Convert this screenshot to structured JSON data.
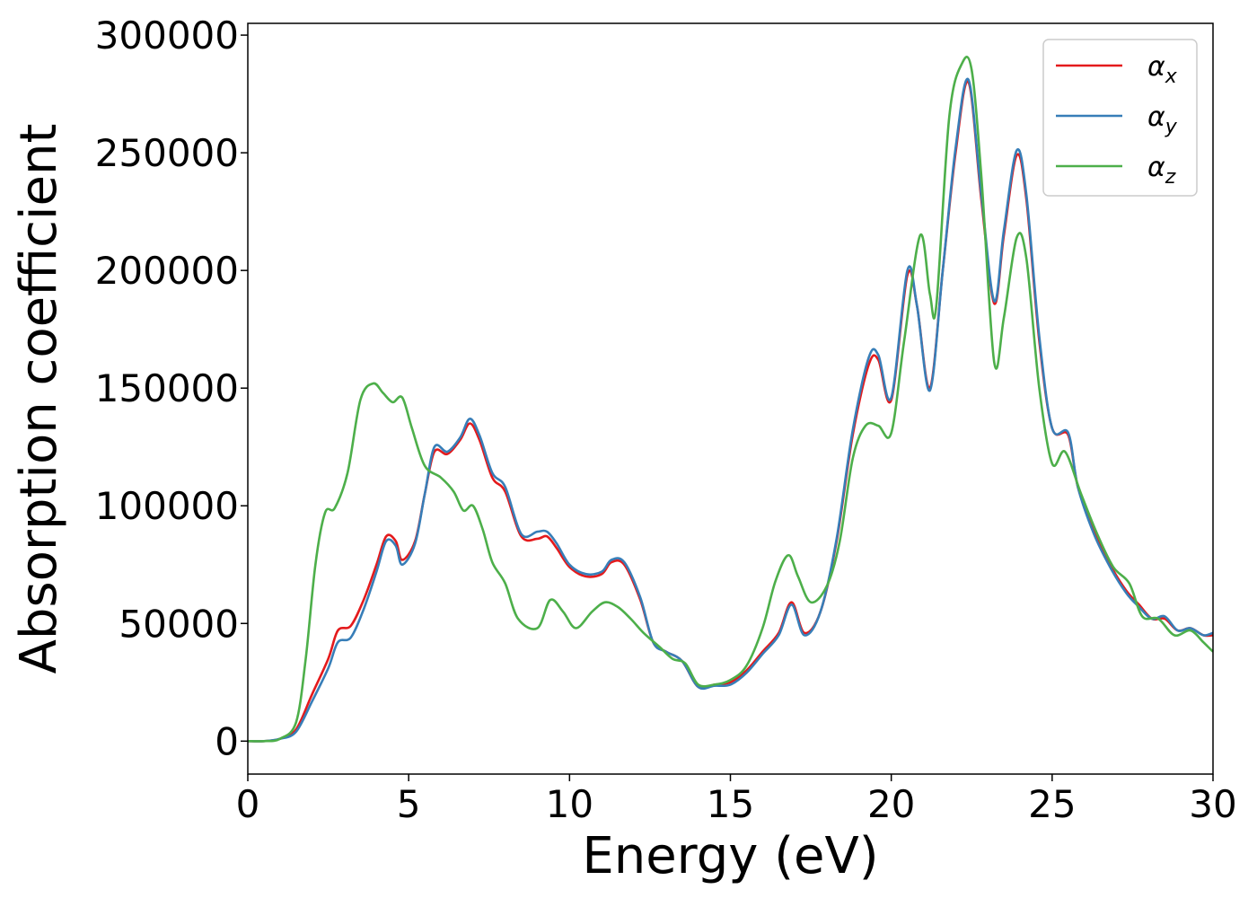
{
  "chart_data": {
    "type": "line",
    "xlabel": "Energy (eV)",
    "ylabel": "Absorption coefficient",
    "xlim": [
      0,
      30
    ],
    "ylim": [
      -14000,
      305000
    ],
    "xticks": [
      0,
      5,
      10,
      15,
      20,
      25,
      30
    ],
    "yticks": [
      0,
      50000,
      100000,
      150000,
      200000,
      250000,
      300000
    ],
    "grid": false,
    "legend_position": "top-right",
    "series": [
      {
        "name": "α_x",
        "legend_base": "α",
        "legend_sub": "x",
        "color": "#e41a1c",
        "points": [
          [
            0,
            0
          ],
          [
            0.5,
            0
          ],
          [
            1,
            1000
          ],
          [
            1.5,
            5000
          ],
          [
            2,
            20000
          ],
          [
            2.5,
            35000
          ],
          [
            2.8,
            47000
          ],
          [
            3.2,
            49000
          ],
          [
            3.6,
            60000
          ],
          [
            4,
            75000
          ],
          [
            4.3,
            87000
          ],
          [
            4.6,
            85000
          ],
          [
            4.8,
            77000
          ],
          [
            5.2,
            85000
          ],
          [
            5.5,
            105000
          ],
          [
            5.8,
            123000
          ],
          [
            6.2,
            122000
          ],
          [
            6.6,
            128000
          ],
          [
            6.9,
            135000
          ],
          [
            7.2,
            128000
          ],
          [
            7.6,
            112000
          ],
          [
            8,
            106000
          ],
          [
            8.5,
            87000
          ],
          [
            9,
            86000
          ],
          [
            9.3,
            87000
          ],
          [
            9.6,
            82000
          ],
          [
            10,
            74000
          ],
          [
            10.5,
            70000
          ],
          [
            11,
            71000
          ],
          [
            11.3,
            76000
          ],
          [
            11.7,
            75000
          ],
          [
            12.2,
            60000
          ],
          [
            12.6,
            42000
          ],
          [
            13,
            38000
          ],
          [
            13.5,
            34000
          ],
          [
            14,
            23000
          ],
          [
            14.5,
            24000
          ],
          [
            15,
            25000
          ],
          [
            15.5,
            30000
          ],
          [
            16,
            38000
          ],
          [
            16.5,
            46000
          ],
          [
            16.9,
            59000
          ],
          [
            17.3,
            46000
          ],
          [
            17.8,
            55000
          ],
          [
            18.3,
            85000
          ],
          [
            18.8,
            130000
          ],
          [
            19.3,
            160000
          ],
          [
            19.6,
            162000
          ],
          [
            20,
            145000
          ],
          [
            20.5,
            198000
          ],
          [
            20.8,
            185000
          ],
          [
            21.2,
            150000
          ],
          [
            21.6,
            200000
          ],
          [
            22,
            250000
          ],
          [
            22.4,
            280000
          ],
          [
            22.8,
            230000
          ],
          [
            23.2,
            186000
          ],
          [
            23.5,
            215000
          ],
          [
            23.9,
            249000
          ],
          [
            24.2,
            230000
          ],
          [
            24.6,
            170000
          ],
          [
            25,
            133000
          ],
          [
            25.5,
            130000
          ],
          [
            25.8,
            108000
          ],
          [
            26.3,
            89000
          ],
          [
            26.8,
            75000
          ],
          [
            27.3,
            64000
          ],
          [
            27.7,
            58000
          ],
          [
            28.1,
            52000
          ],
          [
            28.5,
            52000
          ],
          [
            28.9,
            47000
          ],
          [
            29.3,
            48000
          ],
          [
            29.7,
            45000
          ],
          [
            30,
            45000
          ]
        ]
      },
      {
        "name": "α_y",
        "legend_base": "α",
        "legend_sub": "y",
        "color": "#377eb8",
        "points": [
          [
            0,
            0
          ],
          [
            0.5,
            0
          ],
          [
            1,
            1000
          ],
          [
            1.5,
            4000
          ],
          [
            2,
            17000
          ],
          [
            2.5,
            31000
          ],
          [
            2.8,
            42000
          ],
          [
            3.2,
            44000
          ],
          [
            3.6,
            56000
          ],
          [
            4,
            72000
          ],
          [
            4.3,
            85000
          ],
          [
            4.6,
            83000
          ],
          [
            4.8,
            75000
          ],
          [
            5.2,
            84000
          ],
          [
            5.5,
            105000
          ],
          [
            5.8,
            125000
          ],
          [
            6.2,
            123000
          ],
          [
            6.6,
            129000
          ],
          [
            6.9,
            137000
          ],
          [
            7.2,
            130000
          ],
          [
            7.6,
            114000
          ],
          [
            8,
            108000
          ],
          [
            8.5,
            88000
          ],
          [
            9,
            89000
          ],
          [
            9.3,
            89000
          ],
          [
            9.6,
            84000
          ],
          [
            10,
            75000
          ],
          [
            10.5,
            71000
          ],
          [
            11,
            72000
          ],
          [
            11.3,
            77000
          ],
          [
            11.7,
            76000
          ],
          [
            12.2,
            61000
          ],
          [
            12.6,
            42000
          ],
          [
            13,
            38000
          ],
          [
            13.5,
            34000
          ],
          [
            14,
            23000
          ],
          [
            14.5,
            23500
          ],
          [
            15,
            24000
          ],
          [
            15.5,
            29000
          ],
          [
            16,
            37000
          ],
          [
            16.5,
            45000
          ],
          [
            16.9,
            58000
          ],
          [
            17.3,
            45000
          ],
          [
            17.8,
            55000
          ],
          [
            18.3,
            86000
          ],
          [
            18.8,
            132000
          ],
          [
            19.3,
            163000
          ],
          [
            19.6,
            164000
          ],
          [
            20,
            146000
          ],
          [
            20.5,
            200000
          ],
          [
            20.8,
            185000
          ],
          [
            21.2,
            149000
          ],
          [
            21.6,
            200000
          ],
          [
            22,
            252000
          ],
          [
            22.4,
            281000
          ],
          [
            22.8,
            232000
          ],
          [
            23.2,
            187000
          ],
          [
            23.5,
            217000
          ],
          [
            23.9,
            251000
          ],
          [
            24.2,
            232000
          ],
          [
            24.6,
            172000
          ],
          [
            25,
            133000
          ],
          [
            25.5,
            131000
          ],
          [
            25.8,
            108000
          ],
          [
            26.3,
            88000
          ],
          [
            26.8,
            74000
          ],
          [
            27.3,
            63000
          ],
          [
            27.7,
            57000
          ],
          [
            28.1,
            52000
          ],
          [
            28.5,
            53000
          ],
          [
            28.9,
            47000
          ],
          [
            29.3,
            48000
          ],
          [
            29.7,
            45000
          ],
          [
            30,
            46000
          ]
        ]
      },
      {
        "name": "α_z",
        "legend_base": "α",
        "legend_sub": "z",
        "color": "#4daf4a",
        "points": [
          [
            0,
            0
          ],
          [
            0.5,
            0
          ],
          [
            1,
            1000
          ],
          [
            1.5,
            8000
          ],
          [
            1.8,
            35000
          ],
          [
            2.1,
            75000
          ],
          [
            2.4,
            97000
          ],
          [
            2.7,
            99000
          ],
          [
            3.1,
            114000
          ],
          [
            3.5,
            145000
          ],
          [
            3.9,
            152000
          ],
          [
            4.2,
            148000
          ],
          [
            4.5,
            144000
          ],
          [
            4.8,
            146000
          ],
          [
            5.1,
            133000
          ],
          [
            5.5,
            117000
          ],
          [
            6,
            112000
          ],
          [
            6.4,
            106000
          ],
          [
            6.7,
            98000
          ],
          [
            7,
            100000
          ],
          [
            7.3,
            90000
          ],
          [
            7.6,
            76000
          ],
          [
            8,
            67000
          ],
          [
            8.4,
            52000
          ],
          [
            9,
            48000
          ],
          [
            9.4,
            60000
          ],
          [
            9.8,
            55000
          ],
          [
            10.2,
            48000
          ],
          [
            10.7,
            55000
          ],
          [
            11.1,
            59000
          ],
          [
            11.5,
            57000
          ],
          [
            11.9,
            52000
          ],
          [
            12.3,
            46000
          ],
          [
            12.8,
            40000
          ],
          [
            13.2,
            35000
          ],
          [
            13.6,
            33000
          ],
          [
            14,
            24000
          ],
          [
            14.5,
            24000
          ],
          [
            15,
            26000
          ],
          [
            15.5,
            32000
          ],
          [
            16,
            48000
          ],
          [
            16.4,
            68000
          ],
          [
            16.8,
            79000
          ],
          [
            17.1,
            70000
          ],
          [
            17.5,
            59000
          ],
          [
            18,
            66000
          ],
          [
            18.4,
            85000
          ],
          [
            18.8,
            120000
          ],
          [
            19.2,
            134000
          ],
          [
            19.6,
            134000
          ],
          [
            20,
            131000
          ],
          [
            20.4,
            170000
          ],
          [
            20.9,
            215000
          ],
          [
            21.2,
            190000
          ],
          [
            21.4,
            185000
          ],
          [
            21.8,
            265000
          ],
          [
            22.2,
            288000
          ],
          [
            22.5,
            285000
          ],
          [
            22.8,
            240000
          ],
          [
            23.2,
            161000
          ],
          [
            23.5,
            180000
          ],
          [
            23.9,
            214000
          ],
          [
            24.2,
            205000
          ],
          [
            24.6,
            150000
          ],
          [
            25,
            118000
          ],
          [
            25.4,
            123000
          ],
          [
            25.9,
            105000
          ],
          [
            26.4,
            88000
          ],
          [
            26.9,
            74000
          ],
          [
            27.4,
            67000
          ],
          [
            27.8,
            53000
          ],
          [
            28.3,
            52000
          ],
          [
            28.8,
            45000
          ],
          [
            29.3,
            47000
          ],
          [
            29.7,
            42000
          ],
          [
            30,
            38000
          ]
        ]
      }
    ]
  }
}
